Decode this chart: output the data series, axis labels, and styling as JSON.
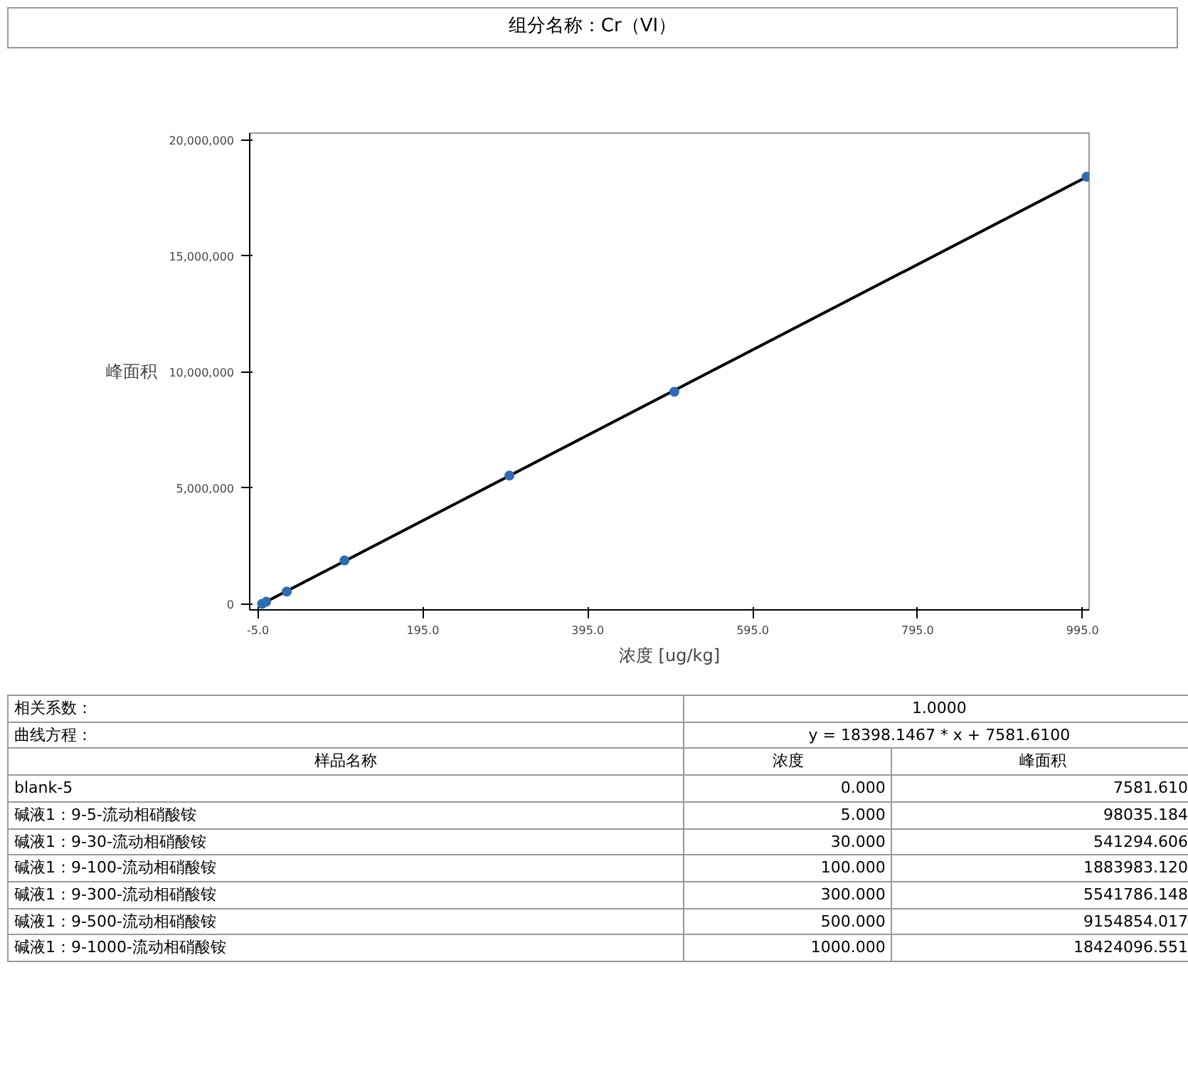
{
  "chart_data": [
    {
      "type": "scatter",
      "title": "组分名称：Cr（VI）",
      "xlabel": "浓度 [ug/kg]",
      "ylabel": "峰面积",
      "xlim": [
        -15,
        1003
      ],
      "ylim": [
        -250000,
        20300000
      ],
      "xticks": [
        {
          "value": -5,
          "label": "-5.0"
        },
        {
          "value": 195,
          "label": "195.0"
        },
        {
          "value": 395,
          "label": "395.0"
        },
        {
          "value": 595,
          "label": "595.0"
        },
        {
          "value": 795,
          "label": "795.0"
        },
        {
          "value": 995,
          "label": "995.0"
        }
      ],
      "yticks": [
        {
          "value": 0,
          "label": "0"
        },
        {
          "value": 5000000,
          "label": "5,000,000"
        },
        {
          "value": 10000000,
          "label": "10,000,000"
        },
        {
          "value": 15000000,
          "label": "15,000,000"
        },
        {
          "value": 20000000,
          "label": "20,000,000"
        }
      ],
      "grid": false,
      "series": [
        {
          "type": "line",
          "marker": "none",
          "color": "#000000",
          "x": [
            0,
            1000
          ],
          "values": [
            10000,
            18410000
          ]
        },
        {
          "marker": "circle",
          "color": "#2e6db4",
          "x": [
            0,
            5,
            30,
            100,
            300,
            500,
            1000
          ],
          "values": [
            10000,
            100000,
            540000,
            1880000,
            5540000,
            9150000,
            18420000
          ]
        }
      ]
    },
    {
      "type": "other",
      "annotations": [
        "相关系数：",
        "1.0000",
        "曲线方程：",
        "y = 18398.1467 * x  + 7581.6100",
        "样品名称",
        "浓度",
        "峰面积",
        "blank-5",
        "0.000",
        "7581.610",
        "碱液1：9-5-流动相硝酸铵",
        "5.000",
        "98035.184",
        "碱液1：9-30-流动相硝酸铵",
        "30.000",
        "541294.606",
        "碱液1：9-100-流动相硝酸铵",
        "100.000",
        "1883983.120",
        "碱液1：9-300-流动相硝酸铵",
        "300.000",
        "5541786.148",
        "碱液1：9-500-流动相硝酸铵",
        "500.000",
        "9154854.017",
        "碱液1：9-1000-流动相硝酸铵",
        "1000.000",
        "18424096.551"
      ]
    }
  ]
}
